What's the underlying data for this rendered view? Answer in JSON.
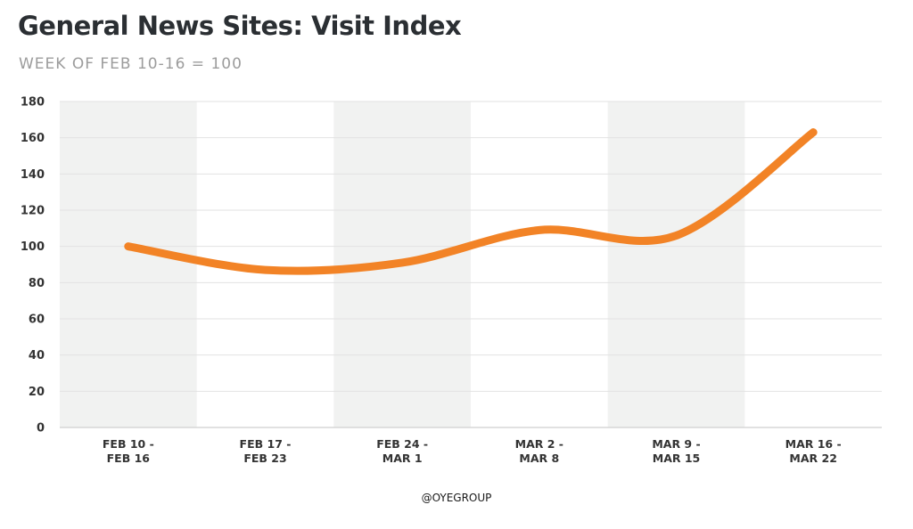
{
  "chart_data": {
    "type": "line",
    "title": "General News Sites: Visit Index",
    "subtitle": "WEEK OF FEB 10-16 = 100",
    "xlabel": "",
    "ylabel": "",
    "categories": [
      [
        "FEB 10 -",
        "FEB 16"
      ],
      [
        "FEB 17 -",
        "FEB 23"
      ],
      [
        "FEB 24 -",
        "MAR 1"
      ],
      [
        "MAR 2 -",
        "MAR 8"
      ],
      [
        "MAR 9 -",
        "MAR 15"
      ],
      [
        "MAR 16 -",
        "MAR 22"
      ]
    ],
    "series": [
      {
        "values": [
          100,
          87,
          91,
          109,
          106,
          163
        ]
      }
    ],
    "ylim": [
      0,
      180
    ],
    "yticks": [
      "0",
      "20",
      "40",
      "60",
      "80",
      "100",
      "120",
      "140",
      "160",
      "180"
    ],
    "grid": true,
    "alternating_column_shading": true,
    "colors": {
      "line": "#f28326",
      "band": "#f1f2f1",
      "grid": "#e2e2e2",
      "axis": "#cfcfcf"
    }
  },
  "credit": "@OYEGROUP"
}
